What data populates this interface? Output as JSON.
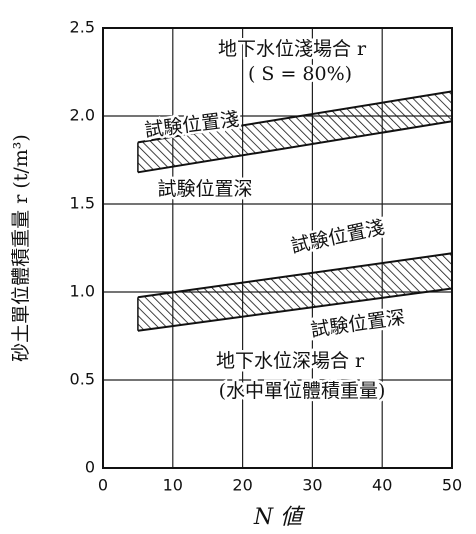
{
  "chart_data": {
    "type": "band",
    "xlabel": "N 値",
    "ylabel": "砂土單位體積重量 r (t/m³)",
    "xlim": [
      0,
      50
    ],
    "xticks": [
      0,
      10,
      20,
      30,
      40,
      50
    ],
    "ylim": [
      0,
      2.5
    ],
    "yticks": [
      0,
      0.5,
      {
        "value": 1,
        "label": "1.0"
      },
      1.5,
      {
        "value": 2,
        "label": "2.0"
      },
      2.5
    ],
    "grid": true,
    "color": "#111111",
    "bands": [
      {
        "x": [
          5,
          50
        ],
        "upper": [
          1.85,
          2.14
        ],
        "lower": [
          1.68,
          1.97
        ]
      },
      {
        "x": [
          5,
          50
        ],
        "upper": [
          0.97,
          1.22
        ],
        "lower": [
          0.78,
          1.02
        ]
      }
    ],
    "annotations": [
      "地下水位淺場合 r",
      "( S = 80%)",
      "試験位置淺",
      "試験位置深",
      "試験位置淺",
      "試験位置深",
      "地下水位深場合 r",
      "(水中單位體積重量)"
    ]
  }
}
